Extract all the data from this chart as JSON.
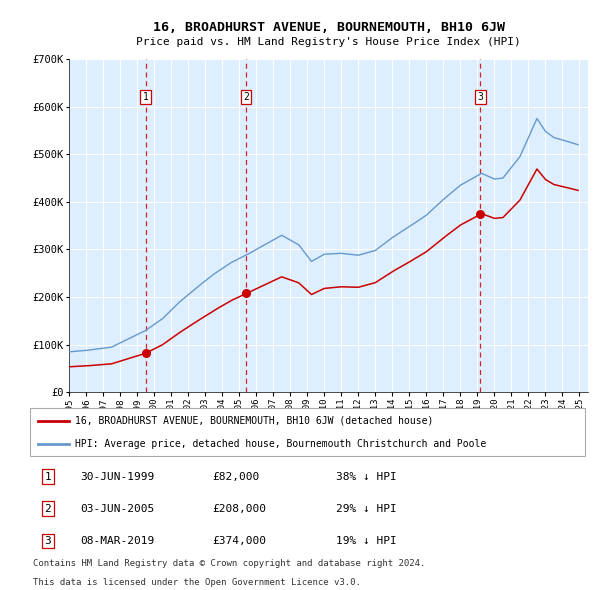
{
  "title": "16, BROADHURST AVENUE, BOURNEMOUTH, BH10 6JW",
  "subtitle": "Price paid vs. HM Land Registry's House Price Index (HPI)",
  "legend_red": "16, BROADHURST AVENUE, BOURNEMOUTH, BH10 6JW (detached house)",
  "legend_blue": "HPI: Average price, detached house, Bournemouth Christchurch and Poole",
  "footer1": "Contains HM Land Registry data © Crown copyright and database right 2024.",
  "footer2": "This data is licensed under the Open Government Licence v3.0.",
  "transactions": [
    {
      "num": 1,
      "date": "30-JUN-1999",
      "price": 82000,
      "hpi_diff": "38% ↓ HPI",
      "x_year": 1999.5
    },
    {
      "num": 2,
      "date": "03-JUN-2005",
      "price": 208000,
      "hpi_diff": "29% ↓ HPI",
      "x_year": 2005.42
    },
    {
      "num": 3,
      "date": "08-MAR-2019",
      "price": 374000,
      "hpi_diff": "19% ↓ HPI",
      "x_year": 2019.18
    }
  ],
  "red_color": "#cc0000",
  "blue_color": "#6699cc",
  "bg_color": "#ddeeff",
  "grid_color": "#ffffff",
  "dashed_color": "#cc0000",
  "box_color": "#cc0000",
  "ylim": [
    0,
    700000
  ],
  "xlim_start": 1995.0,
  "xlim_end": 2025.5,
  "yticks": [
    0,
    100000,
    200000,
    300000,
    400000,
    500000,
    600000,
    700000
  ],
  "ytick_labels": [
    "£0",
    "£100K",
    "£200K",
    "£300K",
    "£400K",
    "£500K",
    "£600K",
    "£700K"
  ],
  "hpi_anchors": [
    [
      1995.0,
      85000
    ],
    [
      1996.0,
      88000
    ],
    [
      1997.5,
      95000
    ],
    [
      1999.5,
      130000
    ],
    [
      2000.5,
      155000
    ],
    [
      2001.5,
      190000
    ],
    [
      2002.5,
      220000
    ],
    [
      2003.5,
      248000
    ],
    [
      2004.5,
      272000
    ],
    [
      2005.5,
      290000
    ],
    [
      2006.5,
      310000
    ],
    [
      2007.5,
      330000
    ],
    [
      2008.5,
      310000
    ],
    [
      2009.25,
      275000
    ],
    [
      2010.0,
      290000
    ],
    [
      2011.0,
      292000
    ],
    [
      2012.0,
      288000
    ],
    [
      2013.0,
      298000
    ],
    [
      2014.0,
      325000
    ],
    [
      2015.0,
      348000
    ],
    [
      2016.0,
      372000
    ],
    [
      2017.0,
      405000
    ],
    [
      2018.0,
      435000
    ],
    [
      2019.25,
      460000
    ],
    [
      2020.0,
      448000
    ],
    [
      2020.5,
      450000
    ],
    [
      2021.5,
      495000
    ],
    [
      2022.5,
      575000
    ],
    [
      2023.0,
      548000
    ],
    [
      2023.5,
      535000
    ],
    [
      2024.0,
      530000
    ],
    [
      2024.9,
      520000
    ]
  ]
}
